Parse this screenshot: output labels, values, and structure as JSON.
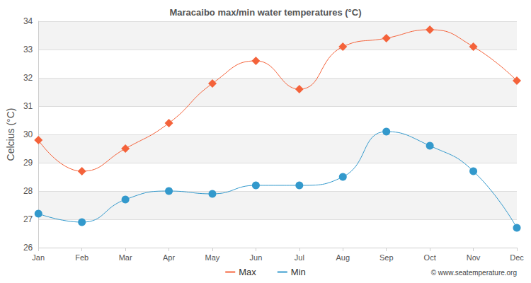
{
  "chart_data": {
    "type": "line",
    "title": "Maracaibo max/min water temperatures (°C)",
    "y_label": "Celcius (°C)",
    "categories": [
      "Jan",
      "Feb",
      "Mar",
      "Apr",
      "May",
      "Jun",
      "Jul",
      "Aug",
      "Sep",
      "Oct",
      "Nov",
      "Dec"
    ],
    "series": [
      {
        "name": "Max",
        "color": "#f4623a",
        "marker": "diamond",
        "line_style": "solid",
        "values": [
          29.8,
          28.7,
          29.5,
          30.4,
          31.8,
          32.6,
          31.6,
          33.1,
          33.4,
          33.7,
          33.1,
          31.9
        ]
      },
      {
        "name": "Min",
        "color": "#3399cc",
        "marker": "circle",
        "line_style": "solid",
        "values": [
          27.2,
          26.9,
          27.7,
          28.0,
          27.9,
          28.2,
          28.2,
          28.5,
          30.1,
          29.6,
          28.7,
          26.7
        ]
      }
    ],
    "ylim": [
      26,
      34
    ],
    "yticks": [
      26,
      27,
      28,
      29,
      30,
      31,
      32,
      33,
      34
    ],
    "grid": true,
    "legend": "bottom",
    "annotations": [
      "© www.seatemperature.org"
    ]
  }
}
